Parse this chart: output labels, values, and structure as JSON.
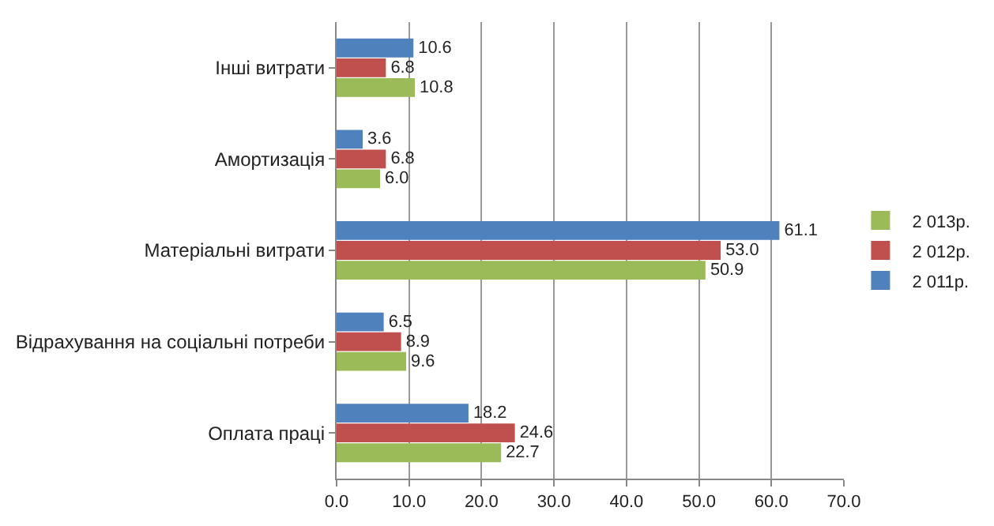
{
  "chart_data": {
    "type": "bar",
    "orientation": "horizontal",
    "categories": [
      "Інші витрати",
      "Амортизація",
      "Матеріальні витрати",
      "Відрахування на соціальні потреби",
      "Оплата праці"
    ],
    "series": [
      {
        "name": "2 011р.",
        "color": "#4f81bd",
        "values": [
          10.6,
          3.6,
          61.1,
          6.5,
          18.2
        ],
        "value_labels": [
          "10.6",
          "3.6",
          "61.1",
          "6.5",
          "18.2"
        ]
      },
      {
        "name": "2 012р.",
        "color": "#c0504d",
        "values": [
          6.8,
          6.8,
          53.0,
          8.9,
          24.6
        ],
        "value_labels": [
          "6.8",
          "6.8",
          "53.0",
          "8.9",
          "24.6"
        ]
      },
      {
        "name": "2 013р.",
        "color": "#9bbb59",
        "values": [
          10.8,
          6.0,
          50.9,
          9.6,
          22.7
        ],
        "value_labels": [
          "10.8",
          "6.0",
          "50.9",
          "9.6",
          "22.7"
        ]
      }
    ],
    "xlim": [
      0,
      70
    ],
    "xticks": [
      {
        "value": 0,
        "label": "0.0"
      },
      {
        "value": 10,
        "label": "10.0"
      },
      {
        "value": 20,
        "label": "20.0"
      },
      {
        "value": 30,
        "label": "30.0"
      },
      {
        "value": 40,
        "label": "40.0"
      },
      {
        "value": 50,
        "label": "50.0"
      },
      {
        "value": 60,
        "label": "60.0"
      },
      {
        "value": 70,
        "label": "70.0"
      }
    ],
    "grid": true,
    "legend": "right"
  }
}
